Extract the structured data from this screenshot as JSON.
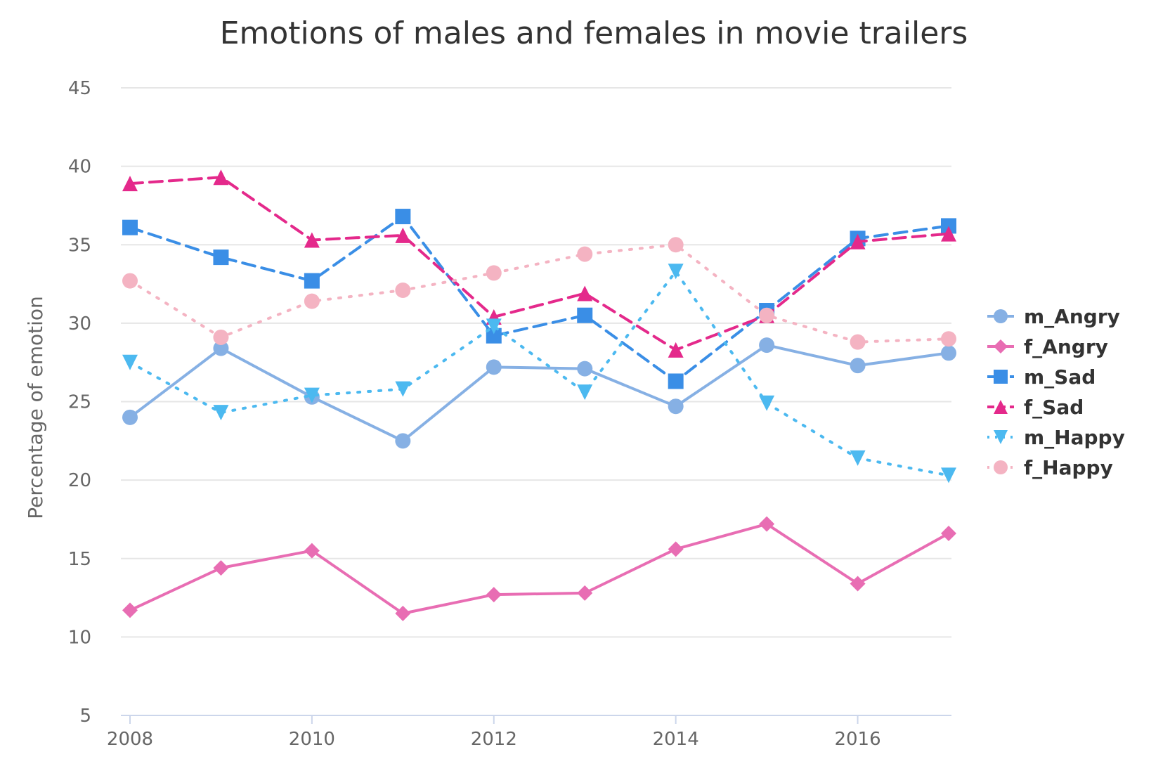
{
  "chart_data": {
    "type": "line",
    "title": "Emotions of males and females in movie trailers",
    "xlabel": "",
    "ylabel": "Percentage of emotion",
    "x": [
      2008,
      2009,
      2010,
      2011,
      2012,
      2013,
      2014,
      2015,
      2016,
      2017
    ],
    "x_ticks": [
      "2008",
      "2010",
      "2012",
      "2014",
      "2016"
    ],
    "y_ticks": [
      "5",
      "10",
      "15",
      "20",
      "25",
      "30",
      "35",
      "40",
      "45"
    ],
    "xlim": [
      2008,
      2017
    ],
    "ylim": [
      5,
      45
    ],
    "grid": true,
    "legend_position": "right",
    "series": [
      {
        "name": "m_Angry",
        "color": "#86b0e4",
        "line_style": "solid",
        "marker": "circle",
        "values": [
          24.0,
          28.4,
          25.3,
          22.5,
          27.2,
          27.1,
          24.7,
          28.6,
          27.3,
          28.1
        ]
      },
      {
        "name": "f_Angry",
        "color": "#e86db3",
        "line_style": "solid",
        "marker": "diamond",
        "values": [
          11.7,
          14.4,
          15.5,
          11.5,
          12.7,
          12.8,
          15.6,
          17.2,
          13.4,
          16.6
        ]
      },
      {
        "name": "m_Sad",
        "color": "#3a8ee6",
        "line_style": "dashed",
        "marker": "square",
        "values": [
          36.1,
          34.2,
          32.7,
          36.8,
          29.2,
          30.5,
          26.3,
          30.8,
          35.4,
          36.2
        ]
      },
      {
        "name": "f_Sad",
        "color": "#e4298b",
        "line_style": "dashed",
        "marker": "triangle",
        "values": [
          38.9,
          39.3,
          35.3,
          35.6,
          30.4,
          31.9,
          28.3,
          30.5,
          35.2,
          35.7
        ]
      },
      {
        "name": "m_Happy",
        "color": "#4cb9f0",
        "line_style": "dotted",
        "marker": "triangle-down",
        "values": [
          27.5,
          24.3,
          25.4,
          25.8,
          29.8,
          25.6,
          33.3,
          24.9,
          21.4,
          20.3
        ]
      },
      {
        "name": "f_Happy",
        "color": "#f4b3c2",
        "line_style": "dotted",
        "marker": "circle",
        "values": [
          32.7,
          29.1,
          31.4,
          32.1,
          33.2,
          34.4,
          35.0,
          30.5,
          28.8,
          29.0
        ]
      }
    ]
  }
}
